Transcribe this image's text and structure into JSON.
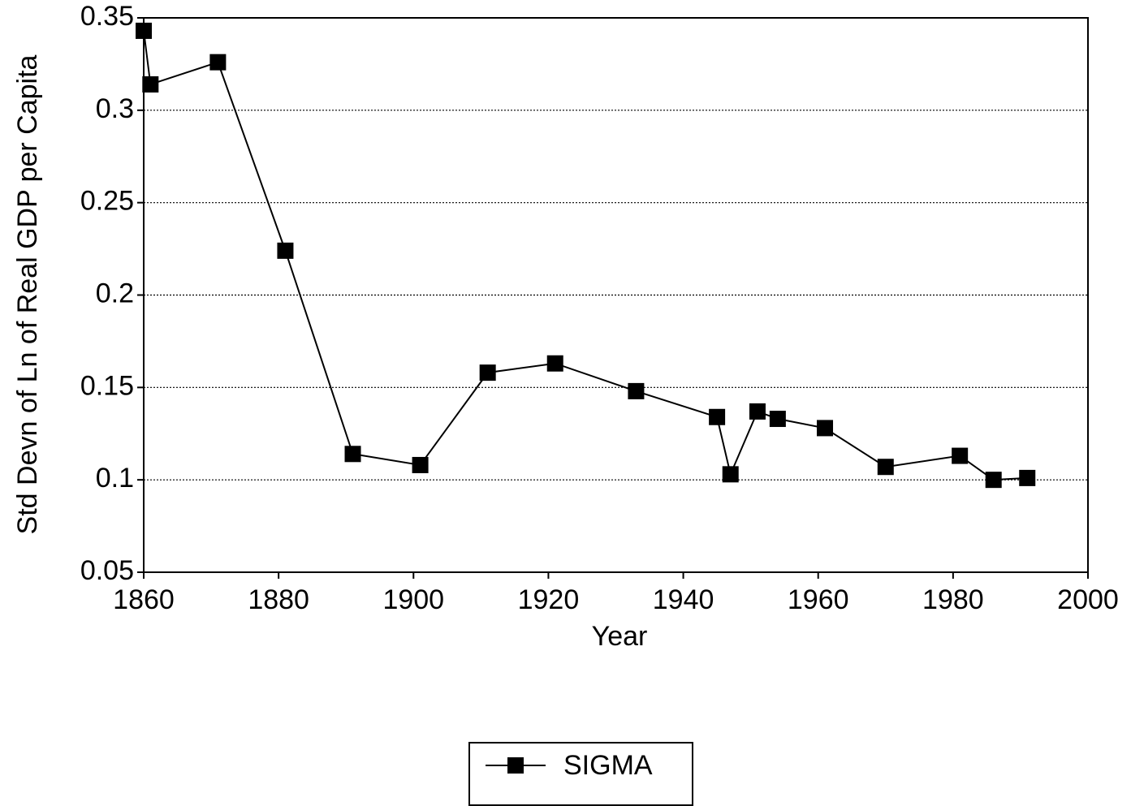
{
  "chart_data": {
    "type": "line",
    "x": [
      1860,
      1861,
      1871,
      1881,
      1891,
      1901,
      1911,
      1921,
      1933,
      1945,
      1947,
      1951,
      1954,
      1961,
      1970,
      1981,
      1986,
      1991
    ],
    "series": [
      {
        "name": "SIGMA",
        "color": "#000000",
        "values": [
          0.343,
          0.314,
          0.326,
          0.224,
          0.114,
          0.108,
          0.158,
          0.163,
          0.148,
          0.134,
          0.103,
          0.137,
          0.133,
          0.128,
          0.107,
          0.113,
          0.1,
          0.101
        ]
      }
    ],
    "xlabel": "Year",
    "ylabel": "Std Devn of Ln of Real GDP per Capita",
    "xlim": [
      1860,
      2000
    ],
    "xticks": [
      1860,
      1880,
      1900,
      1920,
      1940,
      1960,
      1980,
      2000
    ],
    "ylim": [
      0.05,
      0.35
    ],
    "yticks": [
      0.05,
      0.1,
      0.15,
      0.2,
      0.25,
      0.3,
      0.35
    ],
    "grid": true,
    "legend": "bottom"
  }
}
